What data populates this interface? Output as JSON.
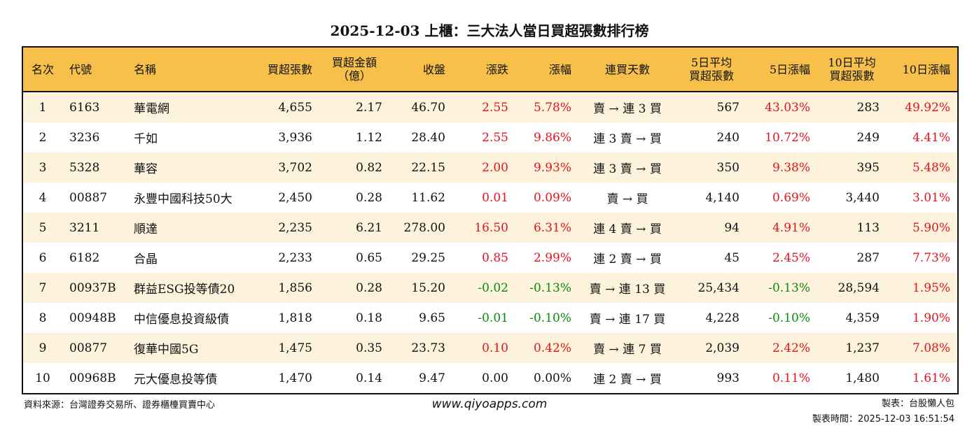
{
  "title": "2025-12-03 上櫃：三大法人當日買超張數排行榜",
  "headers": [
    "名次",
    "代號",
    "名稱",
    "買超張數",
    "買超金額\n（億）",
    "收盤",
    "漲跌",
    "漲幅",
    "連買天數",
    "5日平均\n買超張數",
    "5日漲幅",
    "10日平均\n買超張數",
    "10日漲幅"
  ],
  "colors": {
    "header_bg": "#F6C04A",
    "row_alt_bg": "#FDF3DC",
    "up": "#E3141E",
    "down": "#0A8A0A"
  },
  "rows": [
    {
      "rank": "1",
      "code": "6163",
      "name": "華電網",
      "net_buy": "4,655",
      "amount": "2.17",
      "close": "46.70",
      "change": "2.55",
      "pct": "5.78%",
      "streak": "賣 → 連 3 買",
      "avg5": "567",
      "pct5": "43.03%",
      "avg10": "283",
      "pct10": "49.92%"
    },
    {
      "rank": "2",
      "code": "3236",
      "name": "千如",
      "net_buy": "3,936",
      "amount": "1.12",
      "close": "28.40",
      "change": "2.55",
      "pct": "9.86%",
      "streak": "連 3 賣 → 買",
      "avg5": "240",
      "pct5": "10.72%",
      "avg10": "249",
      "pct10": "4.41%"
    },
    {
      "rank": "3",
      "code": "5328",
      "name": "華容",
      "net_buy": "3,702",
      "amount": "0.82",
      "close": "22.15",
      "change": "2.00",
      "pct": "9.93%",
      "streak": "連 3 賣 → 買",
      "avg5": "350",
      "pct5": "9.38%",
      "avg10": "395",
      "pct10": "5.48%"
    },
    {
      "rank": "4",
      "code": "00887",
      "name": "永豐中國科技50大",
      "net_buy": "2,450",
      "amount": "0.28",
      "close": "11.62",
      "change": "0.01",
      "pct": "0.09%",
      "streak": "賣 → 買",
      "avg5": "4,140",
      "pct5": "0.69%",
      "avg10": "3,440",
      "pct10": "3.01%"
    },
    {
      "rank": "5",
      "code": "3211",
      "name": "順達",
      "net_buy": "2,235",
      "amount": "6.21",
      "close": "278.00",
      "change": "16.50",
      "pct": "6.31%",
      "streak": "連 4 賣 → 買",
      "avg5": "94",
      "pct5": "4.91%",
      "avg10": "113",
      "pct10": "5.90%"
    },
    {
      "rank": "6",
      "code": "6182",
      "name": "合晶",
      "net_buy": "2,233",
      "amount": "0.65",
      "close": "29.25",
      "change": "0.85",
      "pct": "2.99%",
      "streak": "連 2 賣 → 買",
      "avg5": "45",
      "pct5": "2.45%",
      "avg10": "287",
      "pct10": "7.73%"
    },
    {
      "rank": "7",
      "code": "00937B",
      "name": "群益ESG投等債20",
      "net_buy": "1,856",
      "amount": "0.28",
      "close": "15.20",
      "change": "-0.02",
      "pct": "-0.13%",
      "streak": "賣 → 連 13 買",
      "avg5": "25,434",
      "pct5": "-0.13%",
      "avg10": "28,594",
      "pct10": "1.95%"
    },
    {
      "rank": "8",
      "code": "00948B",
      "name": "中信優息投資級債",
      "net_buy": "1,818",
      "amount": "0.18",
      "close": "9.65",
      "change": "-0.01",
      "pct": "-0.10%",
      "streak": "賣 → 連 17 買",
      "avg5": "4,228",
      "pct5": "-0.10%",
      "avg10": "4,359",
      "pct10": "1.90%"
    },
    {
      "rank": "9",
      "code": "00877",
      "name": "復華中國5G",
      "net_buy": "1,475",
      "amount": "0.35",
      "close": "23.73",
      "change": "0.10",
      "pct": "0.42%",
      "streak": "賣 → 連 7 買",
      "avg5": "2,039",
      "pct5": "2.42%",
      "avg10": "1,237",
      "pct10": "7.08%"
    },
    {
      "rank": "10",
      "code": "00968B",
      "name": "元大優息投等債",
      "net_buy": "1,470",
      "amount": "0.14",
      "close": "9.47",
      "change": "0.00",
      "pct": "0.00%",
      "streak": "連 2 賣 → 買",
      "avg5": "993",
      "pct5": "0.11%",
      "avg10": "1,480",
      "pct10": "1.61%"
    }
  ],
  "footer": {
    "source": "資料來源：台灣證券交易所、證券櫃檯買賣中心",
    "url": "www.qiyoapps.com",
    "maker": "製表：台股懶人包",
    "time": "製表時間：2025-12-03 16:51:54"
  }
}
